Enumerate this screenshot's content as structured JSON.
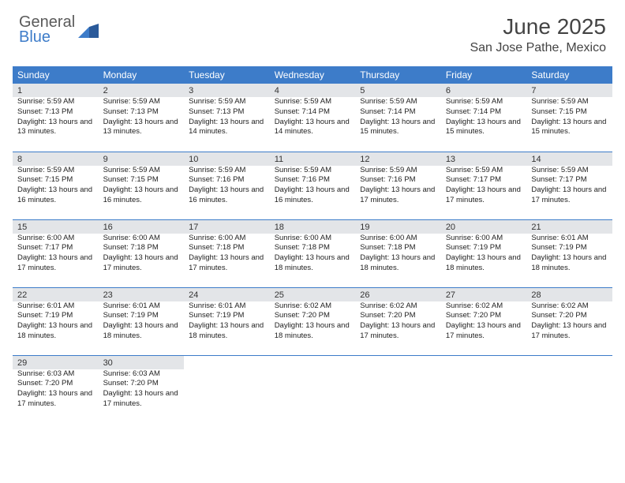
{
  "logo": {
    "general": "General",
    "blue": "Blue"
  },
  "title": "June 2025",
  "location": "San Jose Pathe, Mexico",
  "colors": {
    "header_bg": "#3d7cc9",
    "daynum_bg": "#e3e5e8",
    "border": "#3d7cc9"
  },
  "dow": [
    "Sunday",
    "Monday",
    "Tuesday",
    "Wednesday",
    "Thursday",
    "Friday",
    "Saturday"
  ],
  "weeks": [
    [
      {
        "n": "1",
        "sr": "5:59 AM",
        "ss": "7:13 PM",
        "dl": "13 hours and 13 minutes."
      },
      {
        "n": "2",
        "sr": "5:59 AM",
        "ss": "7:13 PM",
        "dl": "13 hours and 13 minutes."
      },
      {
        "n": "3",
        "sr": "5:59 AM",
        "ss": "7:13 PM",
        "dl": "13 hours and 14 minutes."
      },
      {
        "n": "4",
        "sr": "5:59 AM",
        "ss": "7:14 PM",
        "dl": "13 hours and 14 minutes."
      },
      {
        "n": "5",
        "sr": "5:59 AM",
        "ss": "7:14 PM",
        "dl": "13 hours and 15 minutes."
      },
      {
        "n": "6",
        "sr": "5:59 AM",
        "ss": "7:14 PM",
        "dl": "13 hours and 15 minutes."
      },
      {
        "n": "7",
        "sr": "5:59 AM",
        "ss": "7:15 PM",
        "dl": "13 hours and 15 minutes."
      }
    ],
    [
      {
        "n": "8",
        "sr": "5:59 AM",
        "ss": "7:15 PM",
        "dl": "13 hours and 16 minutes."
      },
      {
        "n": "9",
        "sr": "5:59 AM",
        "ss": "7:15 PM",
        "dl": "13 hours and 16 minutes."
      },
      {
        "n": "10",
        "sr": "5:59 AM",
        "ss": "7:16 PM",
        "dl": "13 hours and 16 minutes."
      },
      {
        "n": "11",
        "sr": "5:59 AM",
        "ss": "7:16 PM",
        "dl": "13 hours and 16 minutes."
      },
      {
        "n": "12",
        "sr": "5:59 AM",
        "ss": "7:16 PM",
        "dl": "13 hours and 17 minutes."
      },
      {
        "n": "13",
        "sr": "5:59 AM",
        "ss": "7:17 PM",
        "dl": "13 hours and 17 minutes."
      },
      {
        "n": "14",
        "sr": "5:59 AM",
        "ss": "7:17 PM",
        "dl": "13 hours and 17 minutes."
      }
    ],
    [
      {
        "n": "15",
        "sr": "6:00 AM",
        "ss": "7:17 PM",
        "dl": "13 hours and 17 minutes."
      },
      {
        "n": "16",
        "sr": "6:00 AM",
        "ss": "7:18 PM",
        "dl": "13 hours and 17 minutes."
      },
      {
        "n": "17",
        "sr": "6:00 AM",
        "ss": "7:18 PM",
        "dl": "13 hours and 17 minutes."
      },
      {
        "n": "18",
        "sr": "6:00 AM",
        "ss": "7:18 PM",
        "dl": "13 hours and 18 minutes."
      },
      {
        "n": "19",
        "sr": "6:00 AM",
        "ss": "7:18 PM",
        "dl": "13 hours and 18 minutes."
      },
      {
        "n": "20",
        "sr": "6:00 AM",
        "ss": "7:19 PM",
        "dl": "13 hours and 18 minutes."
      },
      {
        "n": "21",
        "sr": "6:01 AM",
        "ss": "7:19 PM",
        "dl": "13 hours and 18 minutes."
      }
    ],
    [
      {
        "n": "22",
        "sr": "6:01 AM",
        "ss": "7:19 PM",
        "dl": "13 hours and 18 minutes."
      },
      {
        "n": "23",
        "sr": "6:01 AM",
        "ss": "7:19 PM",
        "dl": "13 hours and 18 minutes."
      },
      {
        "n": "24",
        "sr": "6:01 AM",
        "ss": "7:19 PM",
        "dl": "13 hours and 18 minutes."
      },
      {
        "n": "25",
        "sr": "6:02 AM",
        "ss": "7:20 PM",
        "dl": "13 hours and 18 minutes."
      },
      {
        "n": "26",
        "sr": "6:02 AM",
        "ss": "7:20 PM",
        "dl": "13 hours and 17 minutes."
      },
      {
        "n": "27",
        "sr": "6:02 AM",
        "ss": "7:20 PM",
        "dl": "13 hours and 17 minutes."
      },
      {
        "n": "28",
        "sr": "6:02 AM",
        "ss": "7:20 PM",
        "dl": "13 hours and 17 minutes."
      }
    ],
    [
      {
        "n": "29",
        "sr": "6:03 AM",
        "ss": "7:20 PM",
        "dl": "13 hours and 17 minutes."
      },
      {
        "n": "30",
        "sr": "6:03 AM",
        "ss": "7:20 PM",
        "dl": "13 hours and 17 minutes."
      },
      null,
      null,
      null,
      null,
      null
    ]
  ],
  "labels": {
    "sunrise": "Sunrise:",
    "sunset": "Sunset:",
    "daylight": "Daylight:"
  }
}
